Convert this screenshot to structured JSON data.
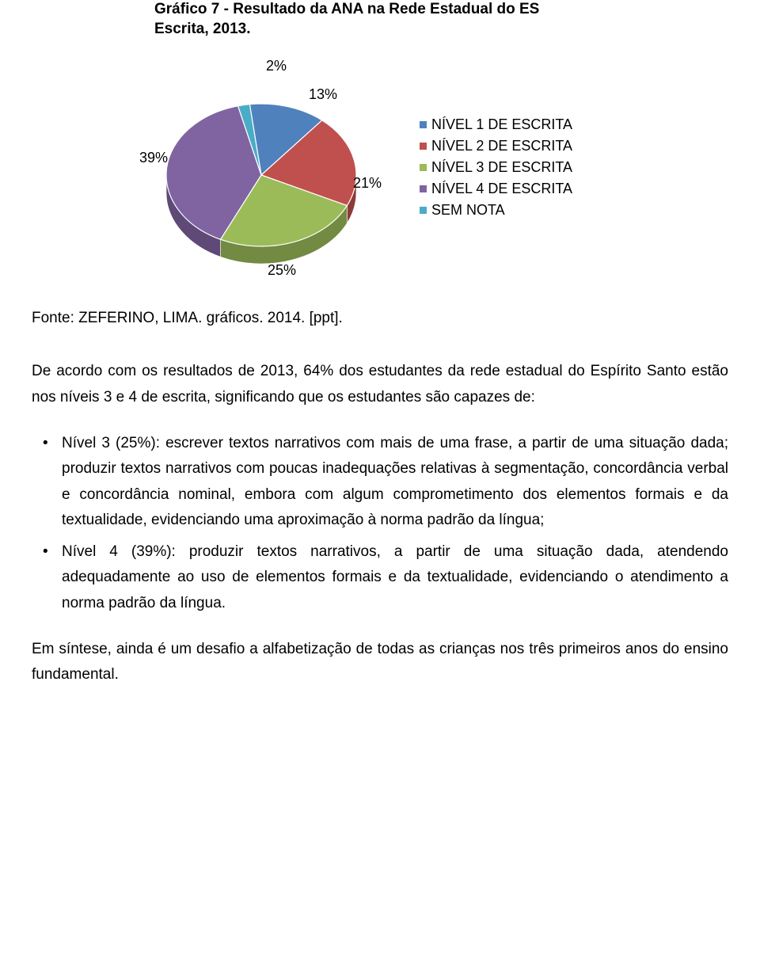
{
  "chart": {
    "type": "pie",
    "title_line1": "Gráfico 7 - Resultado da ANA na Rede Estadual do ES",
    "title_line2": "Escrita, 2013.",
    "title_fontsize": 19,
    "title_color": "#000000",
    "background_color": "#ffffff",
    "slices": [
      {
        "label": "NÍVEL 1 DE ESCRITA",
        "value": 13,
        "display": "13%",
        "color": "#4f81bd",
        "color_dark": "#375d8a",
        "marker": "#4f81bd"
      },
      {
        "label": "NÍVEL 2 DE ESCRITA",
        "value": 21,
        "display": "21%",
        "color": "#c0504d",
        "color_dark": "#8e3a37",
        "marker": "#c0504d"
      },
      {
        "label": "NÍVEL 3 DE ESCRITA",
        "value": 25,
        "display": "25%",
        "color": "#9bbb59",
        "color_dark": "#728a41",
        "marker": "#9bbb59"
      },
      {
        "label": "NÍVEL 4 DE ESCRITA",
        "value": 39,
        "display": "39%",
        "color": "#8064a2",
        "color_dark": "#5e4977",
        "marker": "#8064a2"
      },
      {
        "label": "SEM NOTA",
        "value": 2,
        "display": "2%",
        "color": "#4bacc6",
        "color_dark": "#357e92",
        "marker": "#4bacc6"
      }
    ],
    "label_fontsize": 18,
    "legend_fontsize": 18,
    "legend_position": "right",
    "stroke_color": "#ffffff",
    "stroke_width": 1.2
  },
  "source_text": "Fonte: ZEFERINO, LIMA. gráficos. 2014. [ppt].",
  "intro_para": "De acordo com os resultados de 2013, 64% dos estudantes da rede estadual do Espírito Santo estão nos níveis 3 e 4 de escrita, significando que os estudantes são capazes de:",
  "bullets": [
    "Nível 3 (25%): escrever textos narrativos com mais de uma frase, a partir de uma situação dada; produzir textos narrativos com poucas inadequações relativas à segmentação, concordância verbal e concordância nominal, embora com algum comprometimento dos elementos formais e da textualidade, evidenciando uma aproximação à norma padrão da língua;",
    "Nível 4 (39%): produzir textos narrativos, a partir de uma situação dada, atendendo adequadamente ao uso de elementos formais e da textualidade, evidenciando o atendimento a norma padrão da língua."
  ],
  "closing_para": "Em síntese, ainda é um desafio a alfabetização de todas as crianças nos três primeiros anos do ensino fundamental.",
  "body_fontsize": 19,
  "body_color": "#000000"
}
